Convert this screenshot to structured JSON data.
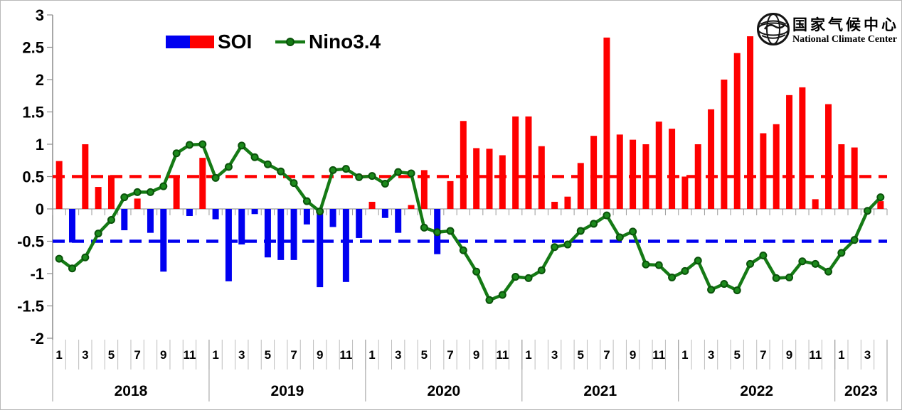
{
  "canvas": {
    "background": "#ffffff",
    "border_color": "#b9b9b9"
  },
  "legend": {
    "soi_label": "SOI",
    "nino_label": "Nino3.4",
    "soi_negative_color": "#0000f0",
    "soi_positive_color": "#fe0000",
    "nino_color": "#157a15"
  },
  "logo": {
    "cn_text": "国家气候中心",
    "en_text": "National Climate Center"
  },
  "axes": {
    "y_ticks": [
      "3",
      "2.5",
      "2",
      "1.5",
      "1",
      "0.5",
      "0",
      "-0.5",
      "-1",
      "-1.5",
      "-2"
    ],
    "y_values": [
      3,
      2.5,
      2,
      1.5,
      1,
      0.5,
      0,
      -0.5,
      -1,
      -1.5,
      -2
    ],
    "month_labels": [
      "1",
      "3",
      "5",
      "7",
      "9",
      "11"
    ],
    "years": [
      {
        "label": "2018",
        "months": 12
      },
      {
        "label": "2019",
        "months": 12
      },
      {
        "label": "2020",
        "months": 12
      },
      {
        "label": "2021",
        "months": 12
      },
      {
        "label": "2022",
        "months": 12
      },
      {
        "label": "2023",
        "months": 4
      }
    ]
  },
  "chart_data": {
    "type": "bar",
    "title": "",
    "xlabel": "",
    "ylabel": "",
    "x_start": "2018-01",
    "x_end": "2023-04",
    "ylim": [
      -2,
      3
    ],
    "ytick_step": 0.5,
    "grid": false,
    "legend_position": "top",
    "series": [
      {
        "name": "SOI",
        "type": "bar",
        "positive_color": "#fe0000",
        "negative_color": "#0000f0",
        "values": [
          0.74,
          -0.52,
          1.0,
          0.34,
          0.52,
          -0.33,
          0.16,
          -0.37,
          -0.97,
          0.48,
          -0.11,
          0.79,
          -0.16,
          -1.12,
          -0.55,
          -0.08,
          -0.75,
          -0.79,
          -0.79,
          -0.24,
          -1.21,
          -0.28,
          -1.13,
          -0.45,
          0.11,
          -0.14,
          -0.37,
          0.06,
          0.6,
          -0.7,
          0.43,
          1.36,
          0.94,
          0.93,
          0.83,
          1.43,
          1.43,
          0.97,
          0.11,
          0.19,
          0.71,
          1.13,
          2.65,
          1.15,
          1.07,
          1.0,
          1.35,
          1.24,
          0.5,
          1.0,
          1.54,
          2.0,
          2.41,
          2.67,
          1.17,
          1.31,
          1.76,
          1.88,
          0.15,
          1.62,
          1.0,
          0.95,
          null,
          0.12
        ]
      },
      {
        "name": "Nino3.4",
        "type": "line",
        "color": "#157a15",
        "values": [
          -0.77,
          -0.92,
          -0.75,
          -0.38,
          -0.17,
          0.18,
          0.26,
          0.26,
          0.35,
          0.86,
          0.99,
          1.0,
          0.48,
          0.65,
          0.98,
          0.8,
          0.69,
          0.58,
          0.4,
          0.12,
          -0.04,
          0.6,
          0.62,
          0.49,
          0.51,
          0.39,
          0.57,
          0.55,
          -0.29,
          -0.36,
          -0.34,
          -0.64,
          -0.97,
          -1.41,
          -1.33,
          -1.05,
          -1.07,
          -0.95,
          -0.59,
          -0.55,
          -0.34,
          -0.23,
          -0.1,
          -0.44,
          -0.35,
          -0.86,
          -0.87,
          -1.06,
          -0.96,
          -0.8,
          -1.25,
          -1.16,
          -1.26,
          -0.85,
          -0.72,
          -1.07,
          -1.06,
          -0.81,
          -0.85,
          -0.97,
          -0.68,
          -0.48,
          -0.03,
          0.18
        ]
      }
    ],
    "reference_lines": [
      {
        "value": 0.5,
        "color": "#fe0000",
        "style": "dashed"
      },
      {
        "value": -0.5,
        "color": "#0000f0",
        "style": "dashed"
      }
    ]
  }
}
